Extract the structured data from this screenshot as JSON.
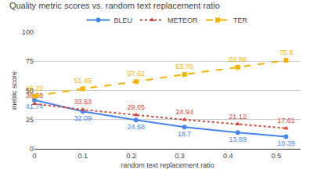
{
  "chart_data": {
    "type": "line",
    "title": "Quality metric scores vs. random text replacement ratio",
    "x_label": "random text replacement ratio",
    "y_label": "metric score",
    "x": [
      0,
      0.1,
      0.21,
      0.31,
      0.42,
      0.52
    ],
    "series": [
      {
        "name": "BLEU",
        "color": "#4285f4",
        "marker": "circle",
        "line_style": "solid",
        "values": [
          41.74,
          32.09,
          24.68,
          18.7,
          13.89,
          10.39
        ]
      },
      {
        "name": "METEOR",
        "color": "#db4437",
        "marker": "triangle",
        "line_style": "dotted",
        "values": [
          38.6,
          33.53,
          29.05,
          24.94,
          21.12,
          17.61
        ],
        "value_labels": [
          "38.60",
          "33.53",
          "29.05",
          "24.94",
          "21.12",
          "17.61"
        ]
      },
      {
        "name": "TER",
        "color": "#f4b400",
        "marker": "square",
        "line_style": "dashed",
        "values": [
          45.22,
          51.45,
          57.62,
          63.76,
          69.88,
          75.8
        ]
      }
    ],
    "xlim": [
      0,
      0.55
    ],
    "xticks": [
      0,
      0.1,
      0.2,
      0.3,
      0.4,
      0.5
    ],
    "ylim": [
      0,
      100
    ],
    "yticks": [
      0,
      25,
      50,
      75,
      100
    ],
    "grid": true,
    "legend": "top",
    "data_labels": true
  }
}
